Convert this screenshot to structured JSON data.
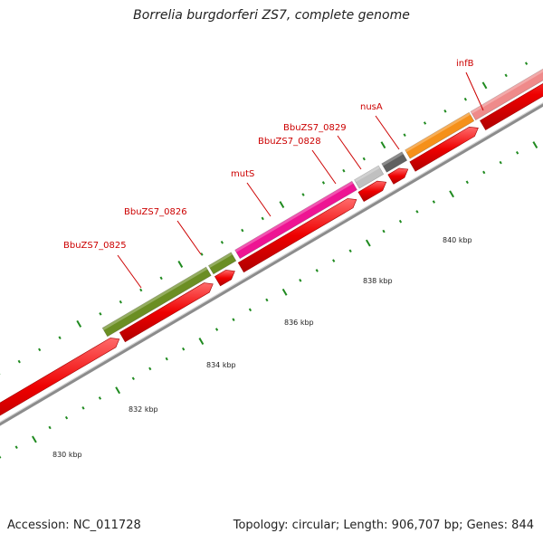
{
  "title": "Borrelia burgdorferi ZS7, complete genome",
  "footer": {
    "accession": "Accession: NC_011728",
    "summary": "Topology: circular; Length: 906,707 bp; Genes: 844"
  },
  "scale": {
    "labels": [
      "830 kbp",
      "832 kbp",
      "834 kbp",
      "836 kbp",
      "838 kbp",
      "840 kbp"
    ]
  },
  "genes": [
    {
      "name": "BbuZS7_0825",
      "color": "#6b8e23"
    },
    {
      "name": "BbuZS7_0826",
      "color": "#6b8e23"
    },
    {
      "name": "mutS",
      "color": "#ee1493"
    },
    {
      "name": "BbuZS7_0828",
      "color": "#c0c0c0"
    },
    {
      "name": "BbuZS7_0829",
      "color": "#606060"
    },
    {
      "name": "nusA",
      "color": "#f5901a"
    },
    {
      "name": "infB",
      "color": "#ef8a8a"
    }
  ],
  "colors": {
    "cds": "#ee0000",
    "backbone": "#8c8c8c",
    "tick": "#1f8a1f",
    "label": "#cc0000"
  }
}
